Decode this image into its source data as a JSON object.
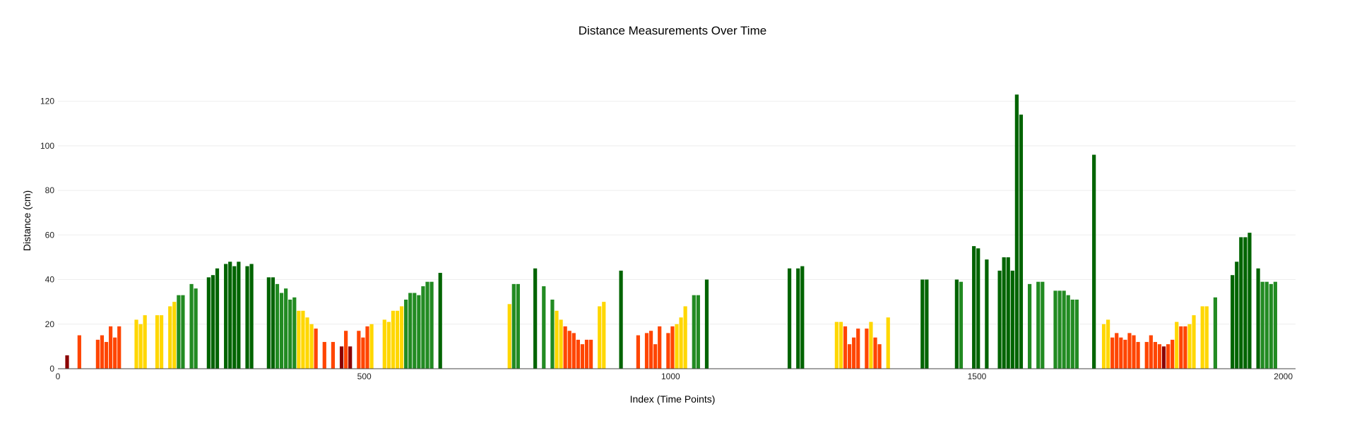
{
  "chart_data": {
    "type": "bar",
    "title": "Distance Measurements Over Time",
    "xlabel": "Index (Time Points)",
    "ylabel": "Distance (cm)",
    "xlim": [
      0,
      2020
    ],
    "ylim": [
      0,
      130
    ],
    "x_ticks": [
      0,
      500,
      1000,
      1500,
      2000
    ],
    "y_ticks": [
      0,
      20,
      40,
      60,
      80,
      100,
      120
    ],
    "grid": true,
    "colors": {
      "very_close": "#8b0000",
      "close": "#ff4500",
      "medium": "#ffd700",
      "far": "#228b22",
      "very_far": "#006400"
    },
    "points": [
      [
        15,
        6
      ],
      [
        35,
        15
      ],
      [
        65,
        13
      ],
      [
        72,
        15
      ],
      [
        79,
        12
      ],
      [
        86,
        19
      ],
      [
        93,
        14
      ],
      [
        100,
        19
      ],
      [
        128,
        22
      ],
      [
        135,
        20
      ],
      [
        142,
        24
      ],
      [
        162,
        24
      ],
      [
        169,
        24
      ],
      [
        183,
        28
      ],
      [
        190,
        30
      ],
      [
        197,
        33
      ],
      [
        204,
        33
      ],
      [
        218,
        38
      ],
      [
        225,
        36
      ],
      [
        246,
        41
      ],
      [
        253,
        42
      ],
      [
        260,
        45
      ],
      [
        274,
        47
      ],
      [
        281,
        48
      ],
      [
        288,
        46
      ],
      [
        295,
        48
      ],
      [
        309,
        46
      ],
      [
        316,
        47
      ],
      [
        344,
        41
      ],
      [
        351,
        41
      ],
      [
        358,
        38
      ],
      [
        365,
        34
      ],
      [
        372,
        36
      ],
      [
        379,
        31
      ],
      [
        386,
        32
      ],
      [
        393,
        26
      ],
      [
        400,
        26
      ],
      [
        407,
        23
      ],
      [
        414,
        20
      ],
      [
        421,
        18
      ],
      [
        435,
        12
      ],
      [
        449,
        12
      ],
      [
        463,
        10
      ],
      [
        470,
        17
      ],
      [
        477,
        10
      ],
      [
        491,
        17
      ],
      [
        498,
        14
      ],
      [
        505,
        19
      ],
      [
        512,
        20
      ],
      [
        533,
        22
      ],
      [
        540,
        21
      ],
      [
        547,
        26
      ],
      [
        554,
        26
      ],
      [
        561,
        28
      ],
      [
        568,
        31
      ],
      [
        575,
        34
      ],
      [
        582,
        34
      ],
      [
        589,
        33
      ],
      [
        596,
        37
      ],
      [
        603,
        39
      ],
      [
        610,
        39
      ],
      [
        624,
        43
      ],
      [
        737,
        29
      ],
      [
        744,
        38
      ],
      [
        751,
        38
      ],
      [
        779,
        45
      ],
      [
        793,
        37
      ],
      [
        807,
        31
      ],
      [
        814,
        26
      ],
      [
        821,
        22
      ],
      [
        828,
        19
      ],
      [
        835,
        17
      ],
      [
        842,
        16
      ],
      [
        849,
        13
      ],
      [
        856,
        11
      ],
      [
        863,
        13
      ],
      [
        870,
        13
      ],
      [
        884,
        28
      ],
      [
        891,
        30
      ],
      [
        919,
        44
      ],
      [
        947,
        15
      ],
      [
        961,
        16
      ],
      [
        968,
        17
      ],
      [
        975,
        11
      ],
      [
        982,
        19
      ],
      [
        996,
        16
      ],
      [
        1003,
        19
      ],
      [
        1010,
        20
      ],
      [
        1017,
        23
      ],
      [
        1024,
        28
      ],
      [
        1038,
        33
      ],
      [
        1045,
        33
      ],
      [
        1059,
        40
      ],
      [
        1194,
        45
      ],
      [
        1208,
        45
      ],
      [
        1215,
        46
      ],
      [
        1271,
        21
      ],
      [
        1278,
        21
      ],
      [
        1285,
        19
      ],
      [
        1292,
        11
      ],
      [
        1299,
        14
      ],
      [
        1306,
        18
      ],
      [
        1320,
        18
      ],
      [
        1327,
        21
      ],
      [
        1334,
        14
      ],
      [
        1341,
        11
      ],
      [
        1355,
        23
      ],
      [
        1411,
        40
      ],
      [
        1418,
        40
      ],
      [
        1467,
        40
      ],
      [
        1474,
        39
      ],
      [
        1495,
        55
      ],
      [
        1502,
        54
      ],
      [
        1516,
        49
      ],
      [
        1537,
        44
      ],
      [
        1544,
        50
      ],
      [
        1551,
        50
      ],
      [
        1558,
        44
      ],
      [
        1565,
        123
      ],
      [
        1572,
        114
      ],
      [
        1586,
        38
      ],
      [
        1600,
        39
      ],
      [
        1607,
        39
      ],
      [
        1628,
        35
      ],
      [
        1635,
        35
      ],
      [
        1642,
        35
      ],
      [
        1649,
        33
      ],
      [
        1656,
        31
      ],
      [
        1663,
        31
      ],
      [
        1691,
        96
      ],
      [
        1707,
        20
      ],
      [
        1714,
        22
      ],
      [
        1721,
        14
      ],
      [
        1728,
        16
      ],
      [
        1735,
        14
      ],
      [
        1742,
        13
      ],
      [
        1749,
        16
      ],
      [
        1756,
        15
      ],
      [
        1763,
        12
      ],
      [
        1777,
        12
      ],
      [
        1784,
        15
      ],
      [
        1791,
        12
      ],
      [
        1798,
        11
      ],
      [
        1805,
        10
      ],
      [
        1812,
        11
      ],
      [
        1819,
        13
      ],
      [
        1826,
        21
      ],
      [
        1833,
        19
      ],
      [
        1840,
        19
      ],
      [
        1847,
        20
      ],
      [
        1854,
        24
      ],
      [
        1868,
        28
      ],
      [
        1875,
        28
      ],
      [
        1889,
        32
      ],
      [
        1917,
        42
      ],
      [
        1924,
        48
      ],
      [
        1931,
        59
      ],
      [
        1938,
        59
      ],
      [
        1945,
        61
      ],
      [
        1959,
        45
      ],
      [
        1966,
        39
      ],
      [
        1973,
        39
      ],
      [
        1980,
        38
      ],
      [
        1987,
        39
      ]
    ]
  }
}
